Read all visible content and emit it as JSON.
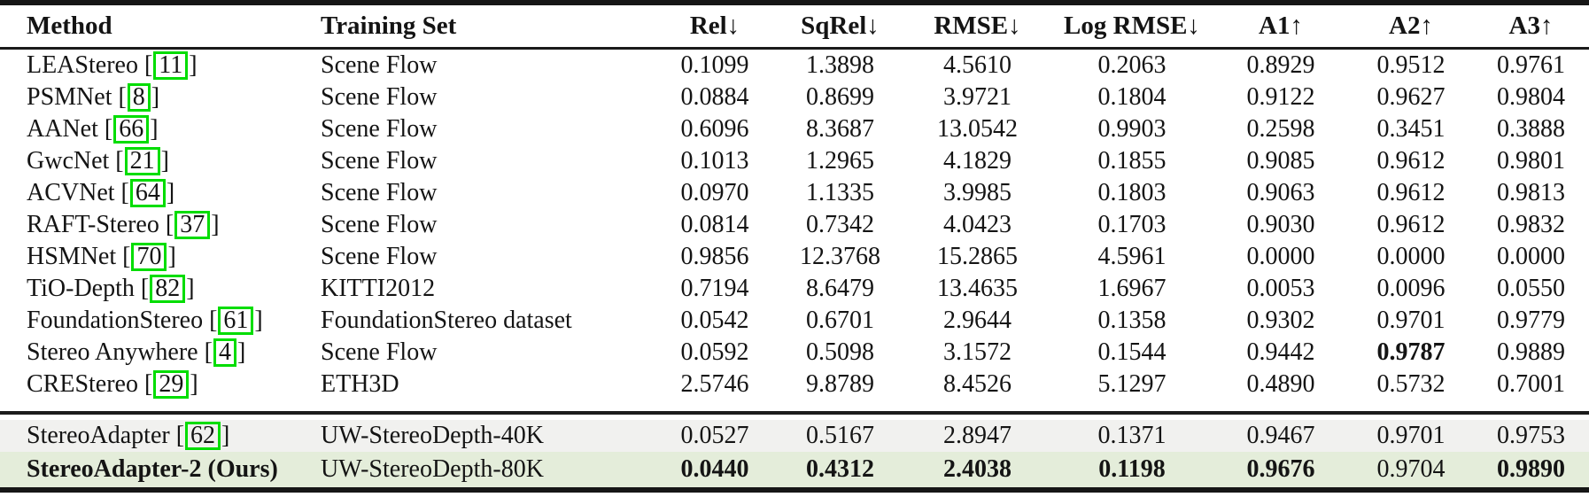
{
  "table": {
    "title": "underwater-stereo-depth-benchmark-table",
    "citation_brackets": {
      "open": "[",
      "close": "]"
    },
    "colors": {
      "highlight_gray": "#f1f1ef",
      "highlight_green": "#e4edda",
      "citation_box_green": "#00dd00",
      "rule_black": "#161616"
    },
    "columns": [
      {
        "key": "method",
        "label": "Method"
      },
      {
        "key": "training_set",
        "label": "Training Set"
      },
      {
        "key": "rel",
        "label": "Rel↓"
      },
      {
        "key": "sqrel",
        "label": "SqRel↓"
      },
      {
        "key": "rmse",
        "label": "RMSE↓"
      },
      {
        "key": "logrmse",
        "label": "Log RMSE↓"
      },
      {
        "key": "a1",
        "label": "A1↑"
      },
      {
        "key": "a2",
        "label": "A2↑"
      },
      {
        "key": "a3",
        "label": "A3↑"
      }
    ],
    "rows": [
      {
        "group": "main",
        "method": "LEAStereo",
        "citation": "11",
        "training_set": "Scene Flow",
        "values": [
          "0.1099",
          "1.3898",
          "4.5610",
          "0.2063",
          "0.8929",
          "0.9512",
          "0.9761"
        ],
        "bold_values": []
      },
      {
        "group": "main",
        "method": "PSMNet",
        "citation": "8",
        "training_set": "Scene Flow",
        "values": [
          "0.0884",
          "0.8699",
          "3.9721",
          "0.1804",
          "0.9122",
          "0.9627",
          "0.9804"
        ],
        "bold_values": []
      },
      {
        "group": "main",
        "method": "AANet",
        "citation": "66",
        "training_set": "Scene Flow",
        "values": [
          "0.6096",
          "8.3687",
          "13.0542",
          "0.9903",
          "0.2598",
          "0.3451",
          "0.3888"
        ],
        "bold_values": []
      },
      {
        "group": "main",
        "method": "GwcNet",
        "citation": "21",
        "training_set": "Scene Flow",
        "values": [
          "0.1013",
          "1.2965",
          "4.1829",
          "0.1855",
          "0.9085",
          "0.9612",
          "0.9801"
        ],
        "bold_values": []
      },
      {
        "group": "main",
        "method": "ACVNet",
        "citation": "64",
        "training_set": "Scene Flow",
        "values": [
          "0.0970",
          "1.1335",
          "3.9985",
          "0.1803",
          "0.9063",
          "0.9612",
          "0.9813"
        ],
        "bold_values": []
      },
      {
        "group": "main",
        "method": "RAFT-Stereo",
        "citation": "37",
        "training_set": "Scene Flow",
        "values": [
          "0.0814",
          "0.7342",
          "4.0423",
          "0.1703",
          "0.9030",
          "0.9612",
          "0.9832"
        ],
        "bold_values": []
      },
      {
        "group": "main",
        "method": "HSMNet",
        "citation": "70",
        "training_set": "Scene Flow",
        "values": [
          "0.9856",
          "12.3768",
          "15.2865",
          "4.5961",
          "0.0000",
          "0.0000",
          "0.0000"
        ],
        "bold_values": []
      },
      {
        "group": "main",
        "method": "TiO-Depth",
        "citation": "82",
        "training_set": "KITTI2012",
        "values": [
          "0.7194",
          "8.6479",
          "13.4635",
          "1.6967",
          "0.0053",
          "0.0096",
          "0.0550"
        ],
        "bold_values": []
      },
      {
        "group": "main",
        "method": "FoundationStereo",
        "citation": "61",
        "training_set": "FoundationStereo dataset",
        "values": [
          "0.0542",
          "0.6701",
          "2.9644",
          "0.1358",
          "0.9302",
          "0.9701",
          "0.9779"
        ],
        "bold_values": []
      },
      {
        "group": "main",
        "method": "Stereo Anywhere",
        "citation": "4",
        "training_set": "Scene Flow",
        "values": [
          "0.0592",
          "0.5098",
          "3.1572",
          "0.1544",
          "0.9442",
          "0.9787",
          "0.9889"
        ],
        "bold_values": [
          5
        ]
      },
      {
        "group": "main",
        "method": "CREStereo",
        "citation": "29",
        "training_set": "ETH3D",
        "values": [
          "2.5746",
          "9.8789",
          "8.4526",
          "5.1297",
          "0.4890",
          "0.5732",
          "0.7001"
        ],
        "bold_values": []
      },
      {
        "group": "ours",
        "method": "StereoAdapter",
        "citation": "62",
        "training_set": "UW-StereoDepth-40K",
        "highlight": "gray",
        "values": [
          "0.0527",
          "0.5167",
          "2.8947",
          "0.1371",
          "0.9467",
          "0.9701",
          "0.9753"
        ],
        "bold_values": []
      },
      {
        "group": "ours",
        "method": "StereoAdapter-2 (Ours)",
        "citation": null,
        "bold_method": true,
        "training_set": "UW-StereoDepth-80K",
        "highlight": "green",
        "values": [
          "0.0440",
          "0.4312",
          "2.4038",
          "0.1198",
          "0.9676",
          "0.9704",
          "0.9890"
        ],
        "bold_values": [
          0,
          1,
          2,
          3,
          4,
          6
        ]
      }
    ]
  }
}
